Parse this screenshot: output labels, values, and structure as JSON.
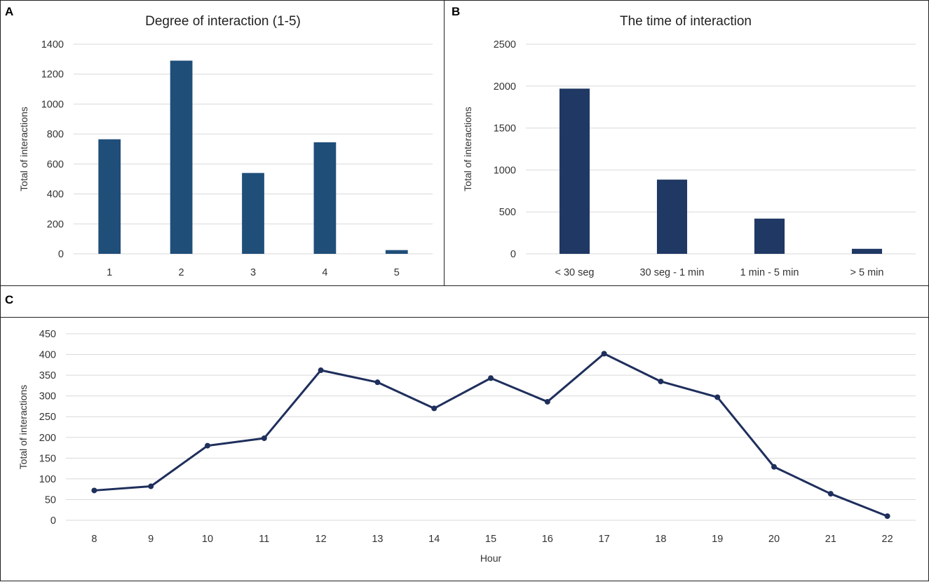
{
  "panels": {
    "a": "A",
    "b": "B",
    "c": "C"
  },
  "colors": {
    "bar_a": "#1f4e79",
    "bar_b": "#203864",
    "line_c": "#1f2f5c",
    "grid": "#d9d9d9"
  },
  "chart_data": [
    {
      "id": "A",
      "type": "bar",
      "title": "Degree of interaction (1-5)",
      "xlabel": "",
      "ylabel": "Total of interactions",
      "categories": [
        "1",
        "2",
        "3",
        "4",
        "5"
      ],
      "values": [
        765,
        1290,
        540,
        745,
        25
      ],
      "ylim": [
        0,
        1400
      ],
      "yticks": [
        "0",
        "200",
        "400",
        "600",
        "800",
        "1000",
        "1200",
        "1400"
      ],
      "grid": true
    },
    {
      "id": "B",
      "type": "bar",
      "title": "The time of interaction",
      "xlabel": "",
      "ylabel": "Total of interactions",
      "categories": [
        "< 30 seg",
        "30 seg - 1 min",
        "1 min - 5 min",
        "> 5 min"
      ],
      "values": [
        1970,
        885,
        420,
        60
      ],
      "ylim": [
        0,
        2500
      ],
      "yticks": [
        "0",
        "500",
        "1000",
        "1500",
        "2000",
        "2500"
      ],
      "grid": true
    },
    {
      "id": "C",
      "type": "line",
      "title": "",
      "xlabel": "Hour",
      "ylabel": "Total of interactions",
      "x": [
        "8",
        "9",
        "10",
        "11",
        "12",
        "13",
        "14",
        "15",
        "16",
        "17",
        "18",
        "19",
        "20",
        "21",
        "22"
      ],
      "values": [
        72,
        82,
        180,
        198,
        362,
        333,
        270,
        343,
        286,
        402,
        335,
        297,
        129,
        64,
        10
      ],
      "ylim": [
        0,
        450
      ],
      "yticks": [
        "0",
        "50",
        "100",
        "150",
        "200",
        "250",
        "300",
        "350",
        "400",
        "450"
      ],
      "grid": true
    }
  ]
}
